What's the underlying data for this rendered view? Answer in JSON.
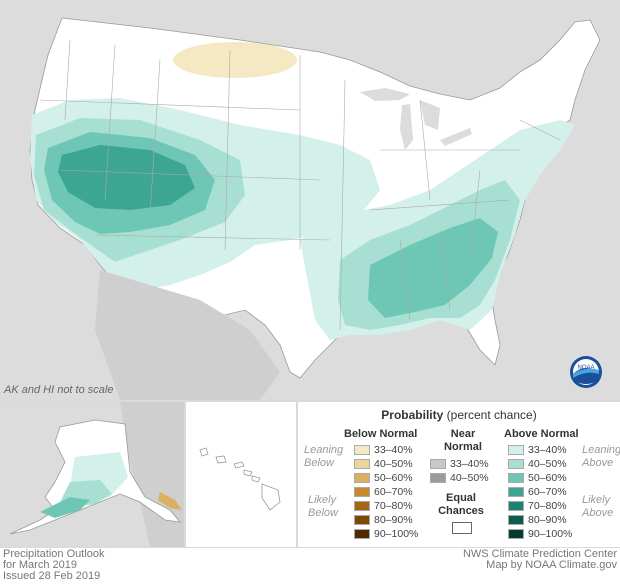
{
  "map": {
    "note": "AK and HI not to scale"
  },
  "legend": {
    "title_bold": "Probability",
    "title_rest": " (percent chance)",
    "below_header": "Below Normal",
    "near_header_line1": "Near",
    "near_header_line2": "Normal",
    "above_header": "Above Normal",
    "leaning_below_1": "Leaning",
    "leaning_below_2": "Below",
    "likely_below_1": "Likely",
    "likely_below_2": "Below",
    "leaning_above_1": "Leaning",
    "leaning_above_2": "Above",
    "likely_above_1": "Likely",
    "likely_above_2": "Above",
    "equal_1": "Equal",
    "equal_2": "Chances",
    "below": [
      {
        "label": "33–40%",
        "color": "#f5e9c4"
      },
      {
        "label": "40–50%",
        "color": "#ecd59a"
      },
      {
        "label": "50–60%",
        "color": "#d9b15f"
      },
      {
        "label": "60–70%",
        "color": "#c68a2e"
      },
      {
        "label": "70–80%",
        "color": "#a76614"
      },
      {
        "label": "80–90%",
        "color": "#7d4708"
      },
      {
        "label": "90–100%",
        "color": "#4e2a02"
      }
    ],
    "near": [
      {
        "label": "33–40%",
        "color": "#c8c8c8"
      },
      {
        "label": "40–50%",
        "color": "#9c9c9c"
      }
    ],
    "above": [
      {
        "label": "33–40%",
        "color": "#d4f0ea"
      },
      {
        "label": "40–50%",
        "color": "#a7e0d3"
      },
      {
        "label": "50–60%",
        "color": "#6ec7b5"
      },
      {
        "label": "60–70%",
        "color": "#3ca693"
      },
      {
        "label": "70–80%",
        "color": "#1c8170"
      },
      {
        "label": "80–90%",
        "color": "#0c5c4f"
      },
      {
        "label": "90–100%",
        "color": "#053a31"
      }
    ]
  },
  "footer": {
    "left_1": "Precipitation Outlook",
    "left_2": "for March 2019",
    "left_3": "Issued 28 Feb 2019",
    "right_1": "NWS Climate Prediction Center",
    "right_2": "Map by NOAA Climate.gov"
  },
  "logo": {
    "text": "NOAA",
    "icon": "noaa-logo-icon"
  }
}
